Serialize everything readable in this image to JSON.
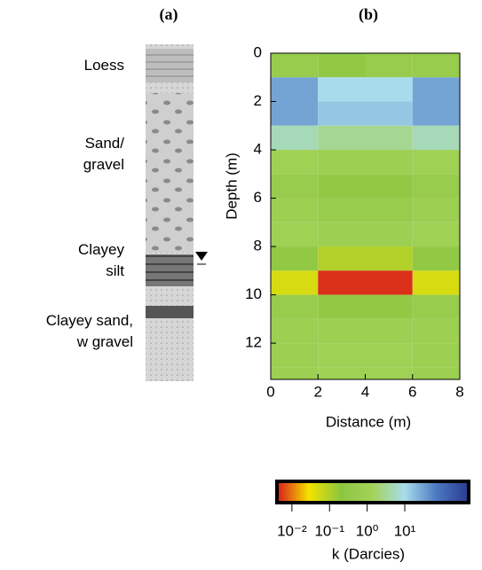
{
  "panel_a": {
    "title": "(a)",
    "layers": [
      "Loess",
      "Sand/\ngravel",
      "Clayey\nsilt",
      "Clayey sand,\nw gravel"
    ]
  },
  "chart_data": {
    "type": "heatmap",
    "title": "(b)",
    "xlabel": "Distance (m)",
    "ylabel": "Depth (m)",
    "xbins": [
      0,
      2,
      4,
      6,
      8
    ],
    "ybins": [
      0,
      1,
      2,
      3,
      4,
      5,
      6,
      7,
      8,
      9,
      10,
      11,
      12,
      13,
      13.5
    ],
    "z": [
      [
        0.5,
        0.3,
        0.5,
        0.5
      ],
      [
        30,
        10,
        10,
        30
      ],
      [
        30,
        15,
        15,
        30
      ],
      [
        5,
        3,
        3,
        5
      ],
      [
        1,
        0.8,
        0.8,
        1
      ],
      [
        0.5,
        0.3,
        0.3,
        0.5
      ],
      [
        0.8,
        0.5,
        0.5,
        0.8
      ],
      [
        1,
        0.8,
        0.8,
        1
      ],
      [
        0.3,
        0.1,
        0.1,
        0.3
      ],
      [
        0.05,
        0.005,
        0.005,
        0.05
      ],
      [
        0.5,
        0.3,
        0.3,
        0.5
      ],
      [
        0.8,
        0.8,
        0.8,
        0.8
      ],
      [
        0.8,
        1,
        1,
        0.8
      ],
      [
        0.8,
        1,
        1,
        0.8
      ]
    ],
    "xlim": [
      0,
      8
    ],
    "xticks": [
      0,
      2,
      4,
      6,
      8
    ],
    "ylim": [
      13.5,
      0
    ],
    "yticks": [
      0,
      2,
      4,
      6,
      8,
      10,
      12
    ],
    "colorbar": {
      "label": "k (Darcies)",
      "log": true,
      "clim": [
        0.004,
        500
      ],
      "colors": [
        "#d7191c",
        "#f5e300",
        "#8cc63f",
        "#a3d35a",
        "#a8dcec",
        "#4a78c0",
        "#2a3a90"
      ],
      "ticks": [
        {
          "value": 0.01,
          "label": "10⁻²"
        },
        {
          "value": 0.1,
          "label": "10⁻¹"
        },
        {
          "value": 1,
          "label": "10⁰"
        },
        {
          "value": 10,
          "label": "10¹"
        }
      ]
    }
  }
}
